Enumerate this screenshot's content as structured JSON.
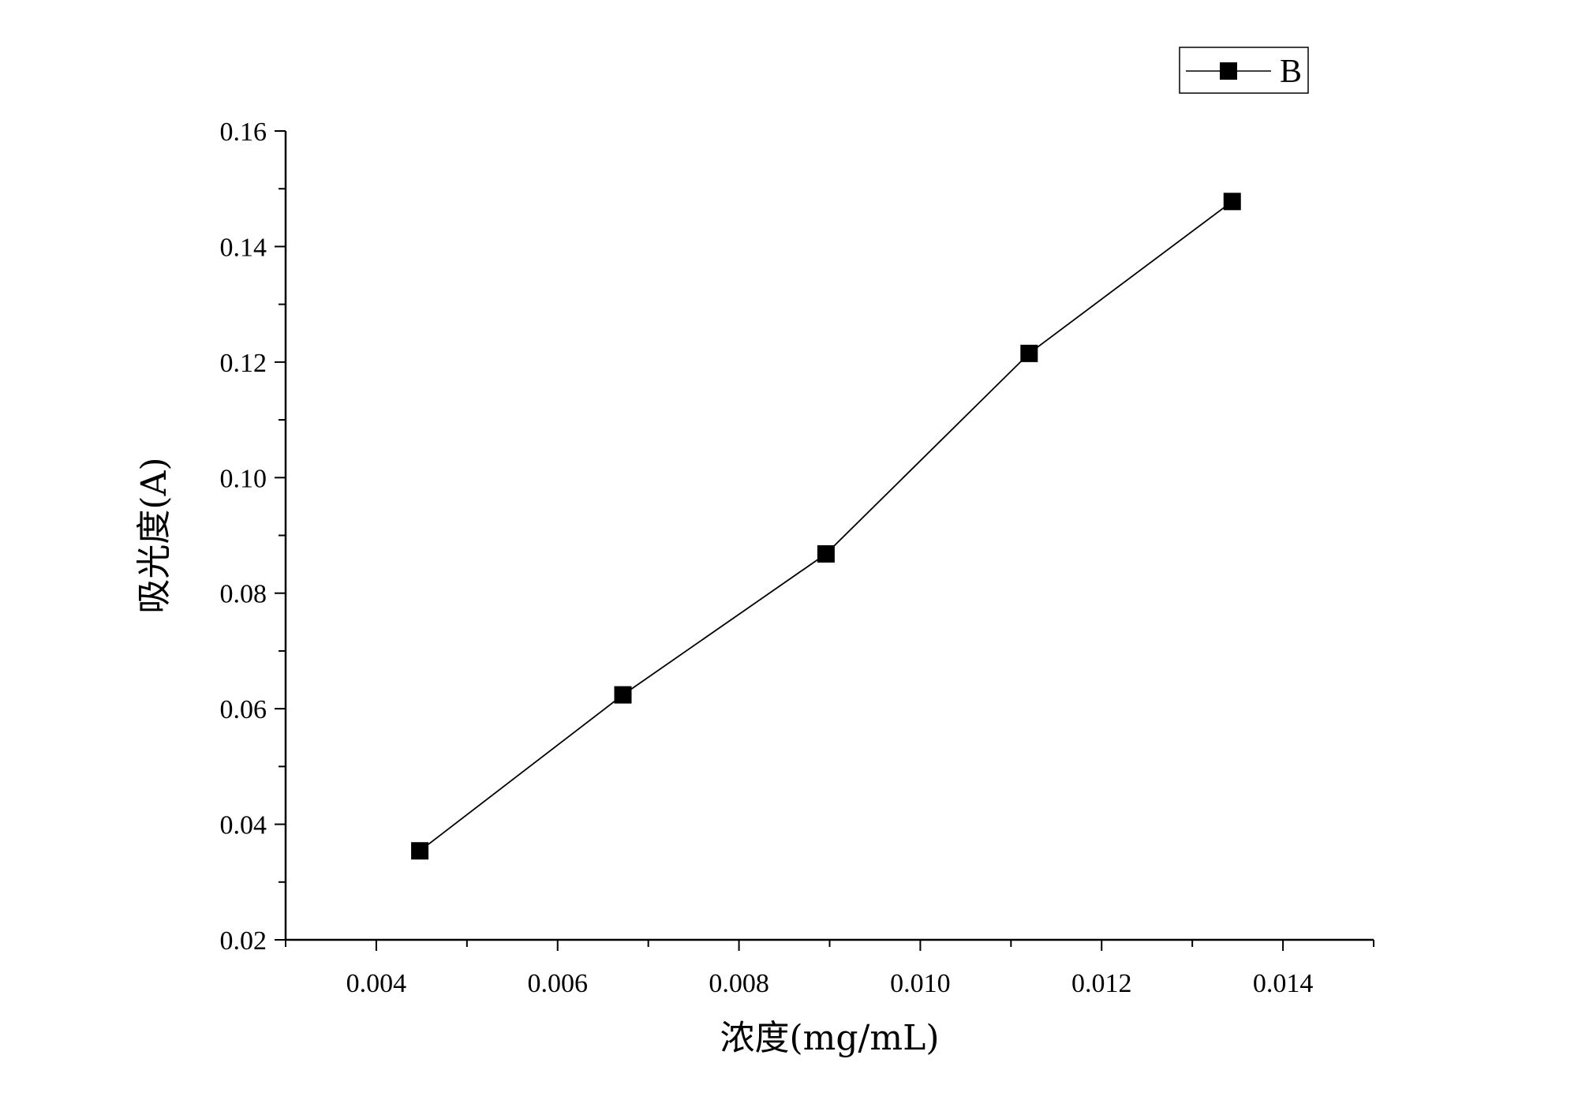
{
  "chart_data": {
    "type": "line",
    "title": "",
    "xlabel": "浓度(mg/mL)",
    "ylabel": "吸光度(A)",
    "xlim": [
      0.003,
      0.015
    ],
    "ylim": [
      0.02,
      0.16
    ],
    "x_ticks": [
      "0.004",
      "0.006",
      "0.008",
      "0.010",
      "0.012",
      "0.014"
    ],
    "y_ticks": [
      "0.02",
      "0.04",
      "0.06",
      "0.08",
      "0.10",
      "0.12",
      "0.14",
      "0.16"
    ],
    "grid": false,
    "legend_position": "top-right",
    "series": [
      {
        "name": "B",
        "marker": "square",
        "color": "#000000",
        "x": [
          0.00448,
          0.00672,
          0.00896,
          0.0112,
          0.01344
        ],
        "y": [
          0.0354,
          0.0624,
          0.0868,
          0.1215,
          0.1478
        ]
      }
    ]
  }
}
